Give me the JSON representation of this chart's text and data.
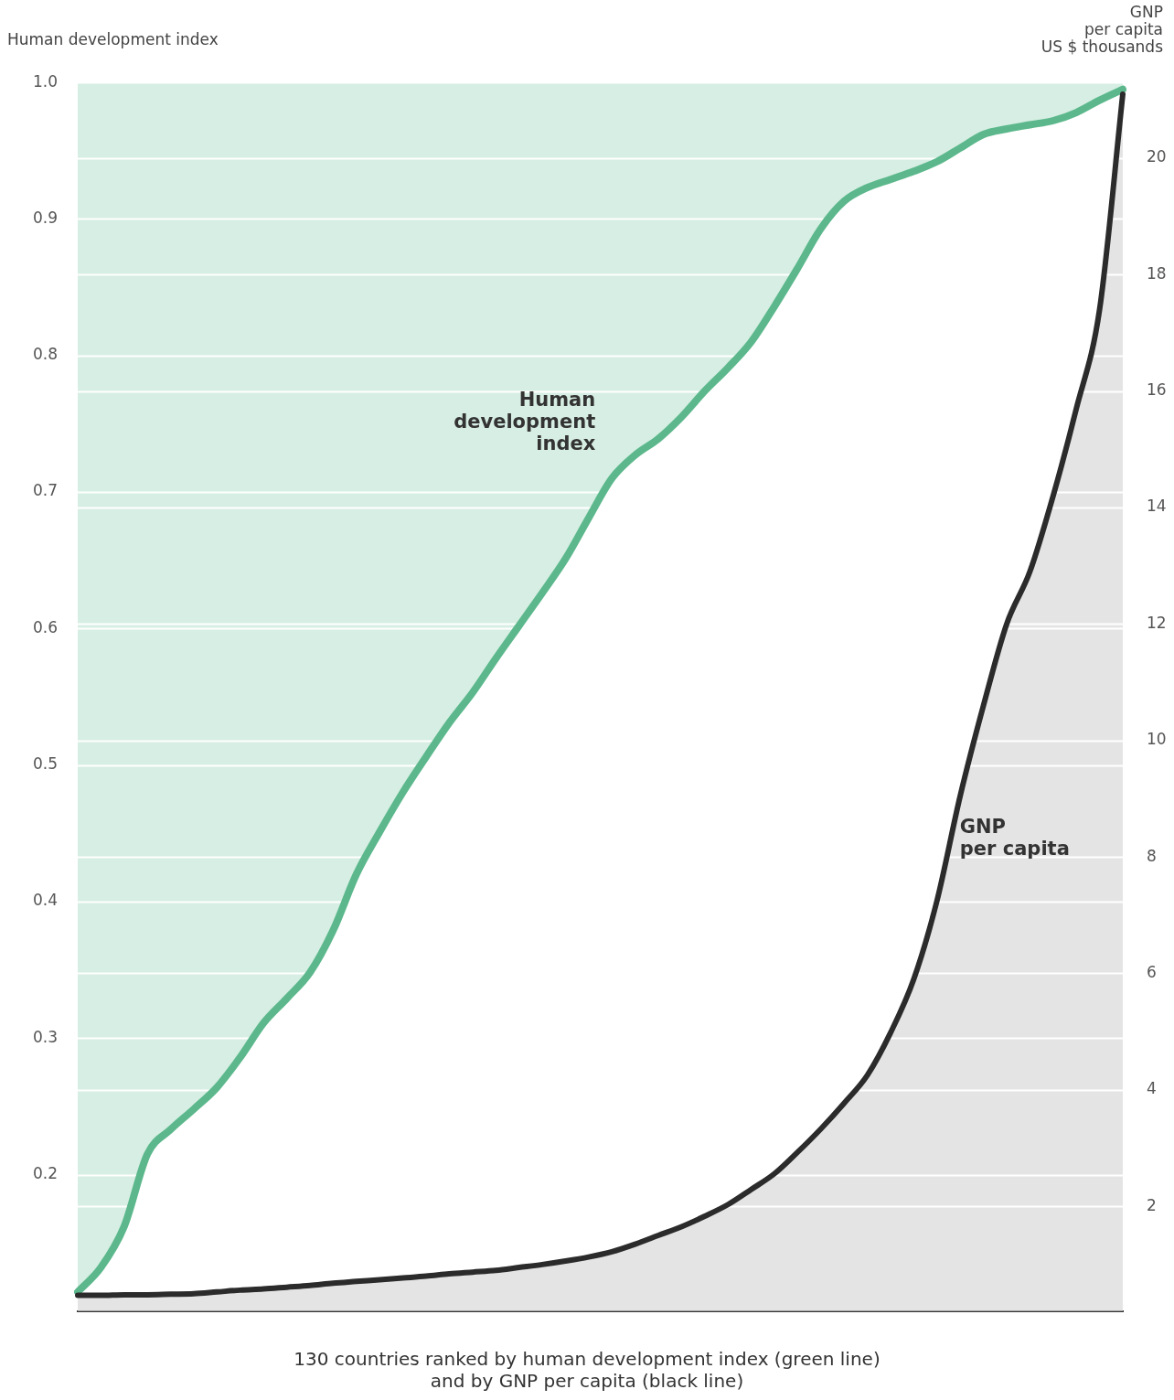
{
  "chart_data": {
    "type": "area",
    "xlabel": "130 countries ranked by human development index (green line)\nand by GNP per capita (black line)",
    "ylabel": "Human development index",
    "y2label": "GNP\nper capita\nUS $ thousands",
    "categories": [
      null,
      null,
      null,
      null,
      null,
      null,
      null,
      null,
      null,
      null,
      null,
      null,
      null,
      null,
      null,
      null,
      null,
      null,
      null,
      null,
      null,
      null,
      null,
      null,
      null,
      null,
      null,
      null,
      null,
      null,
      null,
      null,
      null,
      null,
      null,
      null,
      null,
      null,
      null,
      null,
      null,
      null,
      null,
      null,
      null,
      null
    ],
    "series": [
      {
        "name": "Human development index",
        "color": "#5cb88c",
        "axis": "y",
        "values": [
          0.114,
          0.132,
          0.162,
          0.215,
          0.233,
          0.248,
          0.264,
          0.286,
          0.311,
          0.329,
          0.348,
          0.379,
          0.42,
          0.451,
          0.48,
          0.506,
          0.531,
          0.553,
          0.578,
          0.602,
          0.626,
          0.651,
          0.681,
          0.71,
          0.727,
          0.739,
          0.755,
          0.774,
          0.791,
          0.81,
          0.836,
          0.864,
          0.893,
          0.913,
          0.923,
          0.929,
          0.935,
          0.942,
          0.952,
          0.962,
          0.966,
          0.969,
          0.972,
          0.978,
          0.987,
          0.995
        ]
      },
      {
        "name": "GNP per capita",
        "color": "#2b2b2b",
        "axis": "y2",
        "values": [
          0.47,
          0.47,
          0.48,
          0.48,
          0.49,
          0.5,
          0.53,
          0.56,
          0.58,
          0.61,
          0.64,
          0.68,
          0.71,
          0.74,
          0.77,
          0.8,
          0.84,
          0.87,
          0.9,
          0.95,
          1.0,
          1.06,
          1.13,
          1.22,
          1.35,
          1.5,
          1.65,
          1.83,
          2.03,
          2.29,
          2.56,
          2.93,
          3.33,
          3.77,
          4.25,
          4.98,
          5.9,
          7.25,
          9.05,
          10.6,
          12.0,
          12.9,
          14.2,
          15.7,
          17.4,
          21.1
        ]
      }
    ],
    "ylim": [
      0.1,
      1.0
    ],
    "yticks": [
      0.2,
      0.3,
      0.4,
      0.5,
      0.6,
      0.7,
      0.8,
      0.9,
      {
        "value": 1.0,
        "label": "1.0"
      }
    ],
    "y2lim": [
      0.2,
      21.3
    ],
    "y2ticks": [
      2,
      4,
      6,
      8,
      10,
      12,
      14,
      16,
      18,
      20
    ],
    "bands": [
      {
        "axis": "y",
        "from": 0.1,
        "to": 1.0,
        "color": "#d6eee3"
      }
    ],
    "grid": "y",
    "marker": "none",
    "line_style": "solid",
    "legend": false
  }
}
